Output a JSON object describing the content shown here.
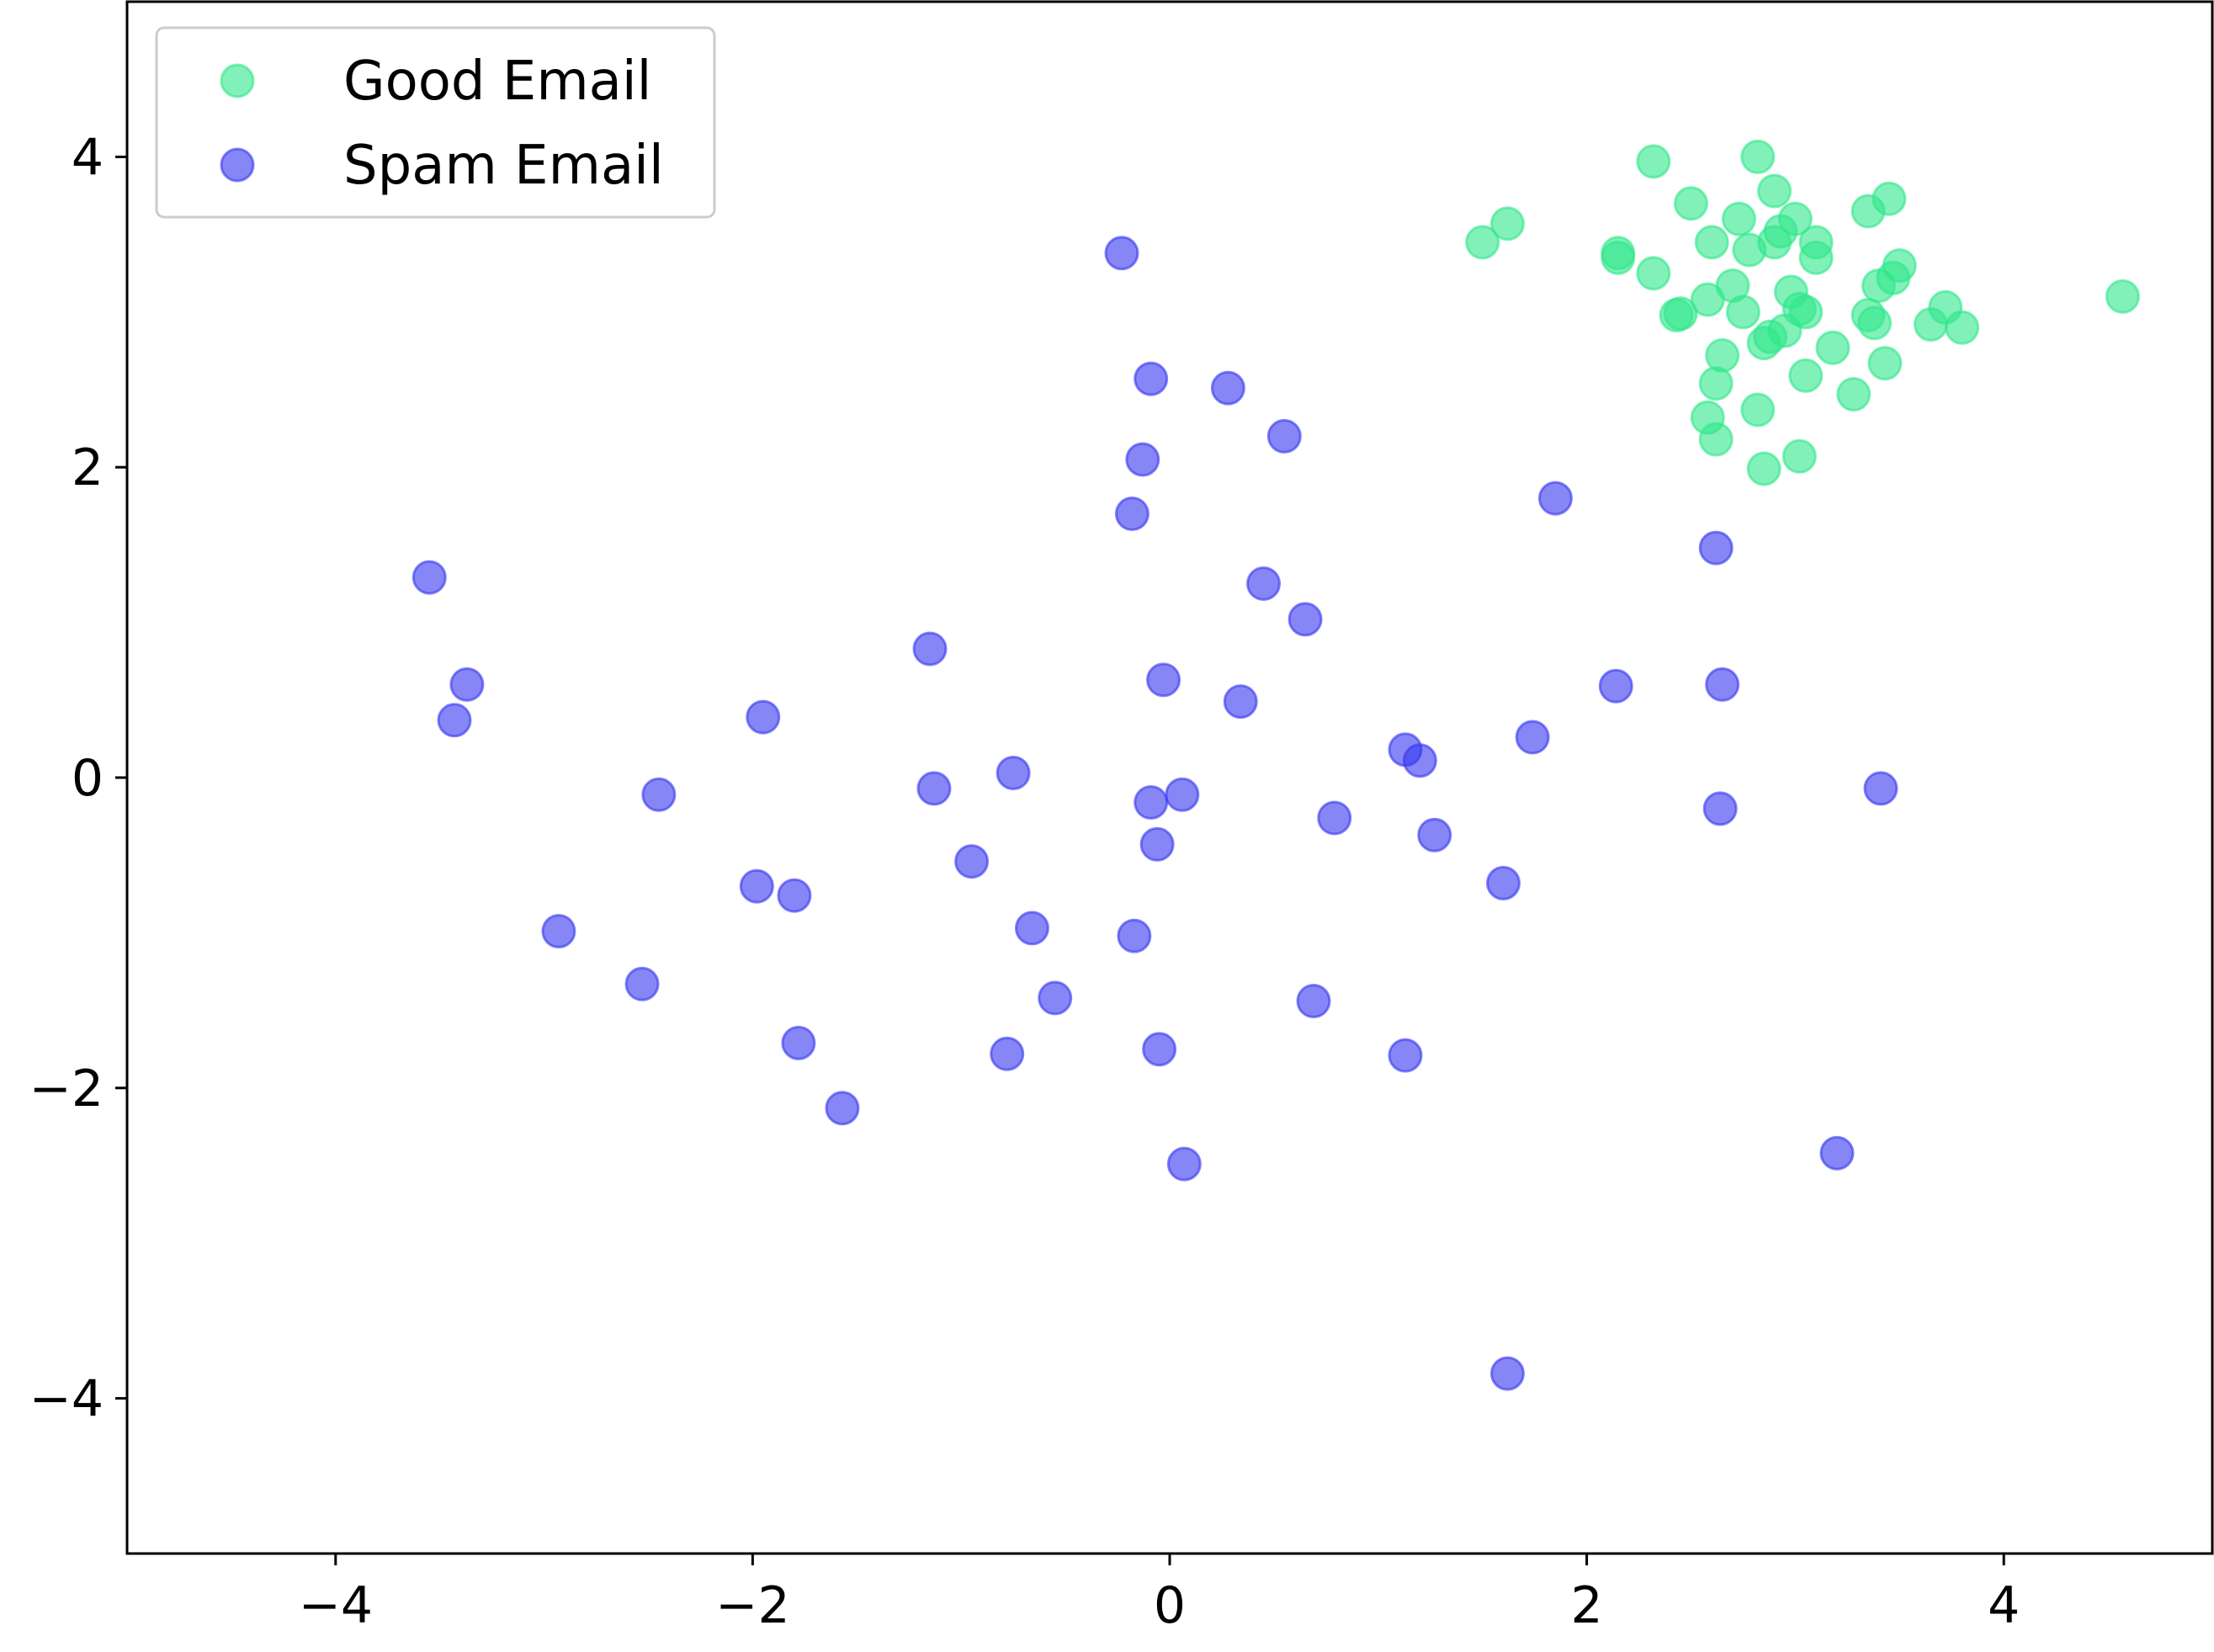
{
  "chart_data": {
    "type": "scatter",
    "title": "",
    "xlabel": "",
    "ylabel": "",
    "xlim": [
      -5,
      5
    ],
    "ylim": [
      -5,
      5
    ],
    "x_ticks": [
      {
        "value": -4,
        "label": "−4"
      },
      {
        "value": -2,
        "label": "−2"
      },
      {
        "value": 0,
        "label": "0"
      },
      {
        "value": 2,
        "label": "2"
      },
      {
        "value": 4,
        "label": "4"
      }
    ],
    "y_ticks": [
      {
        "value": 4,
        "label": "4"
      },
      {
        "value": 2,
        "label": "2"
      },
      {
        "value": 0,
        "label": "0"
      },
      {
        "value": -2,
        "label": "−2"
      },
      {
        "value": -4,
        "label": "−4"
      }
    ],
    "grid": false,
    "legend_position": "upper-left",
    "series": [
      {
        "name": "Good Email",
        "color": "#2ee88a",
        "points": [
          [
            1.5,
            3.45
          ],
          [
            1.62,
            3.57
          ],
          [
            2.15,
            3.38
          ],
          [
            2.15,
            3.35
          ],
          [
            2.32,
            3.97
          ],
          [
            2.32,
            3.25
          ],
          [
            2.43,
            2.98
          ],
          [
            2.45,
            2.99
          ],
          [
            2.5,
            3.7
          ],
          [
            2.58,
            3.08
          ],
          [
            2.6,
            3.45
          ],
          [
            2.58,
            2.32
          ],
          [
            2.62,
            2.54
          ],
          [
            2.62,
            2.18
          ],
          [
            2.65,
            2.72
          ],
          [
            2.7,
            3.17
          ],
          [
            2.73,
            3.6
          ],
          [
            2.75,
            3.0
          ],
          [
            2.78,
            3.4
          ],
          [
            2.82,
            4.0
          ],
          [
            2.82,
            2.37
          ],
          [
            2.85,
            2.8
          ],
          [
            2.85,
            1.99
          ],
          [
            2.88,
            2.84
          ],
          [
            2.9,
            3.78
          ],
          [
            2.9,
            3.45
          ],
          [
            2.93,
            3.52
          ],
          [
            2.95,
            2.88
          ],
          [
            2.98,
            3.13
          ],
          [
            3.0,
            3.6
          ],
          [
            3.02,
            3.02
          ],
          [
            3.02,
            2.07
          ],
          [
            3.05,
            3.0
          ],
          [
            3.05,
            2.59
          ],
          [
            3.1,
            3.45
          ],
          [
            3.1,
            3.35
          ],
          [
            3.18,
            2.77
          ],
          [
            3.28,
            2.47
          ],
          [
            3.35,
            3.65
          ],
          [
            3.35,
            2.98
          ],
          [
            3.38,
            2.93
          ],
          [
            3.4,
            3.17
          ],
          [
            3.43,
            2.67
          ],
          [
            3.45,
            3.73
          ],
          [
            3.47,
            3.22
          ],
          [
            3.5,
            3.3
          ],
          [
            3.65,
            2.92
          ],
          [
            3.72,
            3.03
          ],
          [
            3.8,
            2.9
          ],
          [
            4.57,
            3.1
          ]
        ]
      },
      {
        "name": "Spam Email",
        "color": "#3636f2",
        "points": [
          [
            -3.55,
            1.29
          ],
          [
            -3.37,
            0.6
          ],
          [
            -3.43,
            0.37
          ],
          [
            -2.93,
            -0.99
          ],
          [
            -2.53,
            -1.33
          ],
          [
            -2.45,
            -0.11
          ],
          [
            -1.95,
            0.39
          ],
          [
            -1.98,
            -0.7
          ],
          [
            -1.8,
            -0.76
          ],
          [
            -1.78,
            -1.71
          ],
          [
            -1.57,
            -2.13
          ],
          [
            -1.15,
            0.83
          ],
          [
            -1.13,
            -0.07
          ],
          [
            -0.95,
            -0.54
          ],
          [
            -0.75,
            0.03
          ],
          [
            -0.78,
            -1.78
          ],
          [
            -0.66,
            -0.97
          ],
          [
            -0.55,
            -1.42
          ],
          [
            -0.23,
            3.38
          ],
          [
            -0.18,
            1.7
          ],
          [
            -0.13,
            2.05
          ],
          [
            -0.09,
            2.57
          ],
          [
            -0.09,
            -0.16
          ],
          [
            -0.06,
            -0.43
          ],
          [
            -0.05,
            -1.75
          ],
          [
            -0.17,
            -1.02
          ],
          [
            -0.03,
            0.63
          ],
          [
            0.06,
            -0.11
          ],
          [
            0.07,
            -2.49
          ],
          [
            0.28,
            2.51
          ],
          [
            0.34,
            0.49
          ],
          [
            0.45,
            1.25
          ],
          [
            0.55,
            2.2
          ],
          [
            0.65,
            1.02
          ],
          [
            0.69,
            -1.44
          ],
          [
            0.79,
            -0.26
          ],
          [
            1.13,
            0.18
          ],
          [
            1.2,
            0.11
          ],
          [
            1.27,
            -0.37
          ],
          [
            1.13,
            -1.79
          ],
          [
            1.6,
            -0.68
          ],
          [
            1.74,
            0.26
          ],
          [
            1.85,
            1.8
          ],
          [
            2.14,
            0.59
          ],
          [
            2.62,
            1.48
          ],
          [
            2.65,
            0.6
          ],
          [
            2.64,
            -0.2
          ],
          [
            3.41,
            -0.07
          ],
          [
            3.2,
            -2.42
          ],
          [
            1.62,
            -3.84
          ]
        ]
      }
    ]
  }
}
